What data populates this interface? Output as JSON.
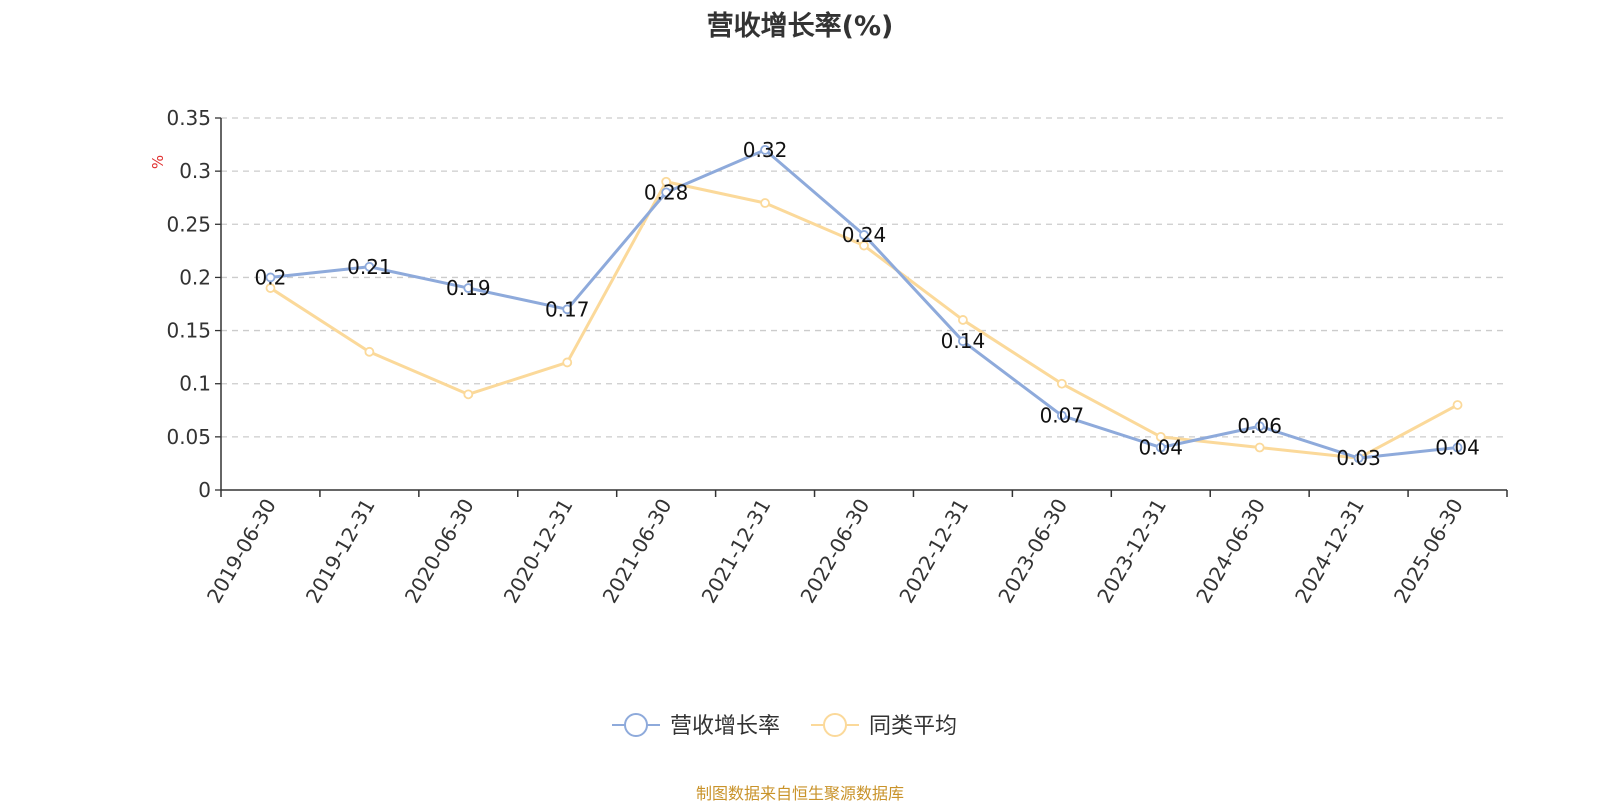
{
  "chart_data": {
    "type": "line",
    "title": "营收增长率(%)",
    "ylabel": "%",
    "xlabel": "",
    "ylim": [
      0,
      0.35
    ],
    "yticks": [
      "0",
      "0.05",
      "0.1",
      "0.15",
      "0.2",
      "0.25",
      "0.3",
      "0.35"
    ],
    "categories": [
      "2019-06-30",
      "2019-12-31",
      "2020-06-30",
      "2020-12-31",
      "2021-06-30",
      "2021-12-31",
      "2022-06-30",
      "2022-12-31",
      "2023-06-30",
      "2023-12-31",
      "2024-06-30",
      "2024-12-31",
      "2025-06-30"
    ],
    "series": [
      {
        "name": "营收增长率",
        "color": "#8eaadb",
        "values": [
          0.2,
          0.21,
          0.19,
          0.17,
          0.28,
          0.32,
          0.24,
          0.14,
          0.07,
          0.04,
          0.06,
          0.03,
          0.04
        ],
        "value_labels": [
          "0.2",
          "0.21",
          "0.19",
          "0.17",
          "0.28",
          "0.32",
          "0.24",
          "0.14",
          "0.07",
          "0.04",
          "0.06",
          "0.03",
          "0.04"
        ]
      },
      {
        "name": "同类平均",
        "color": "#fbd99a",
        "values": [
          0.19,
          0.13,
          0.09,
          0.12,
          0.29,
          0.27,
          0.23,
          0.16,
          0.1,
          0.05,
          0.04,
          0.03,
          0.08
        ]
      }
    ],
    "grid": true,
    "legend_position": "bottom-center"
  },
  "source_note": "制图数据来自恒生聚源数据库"
}
